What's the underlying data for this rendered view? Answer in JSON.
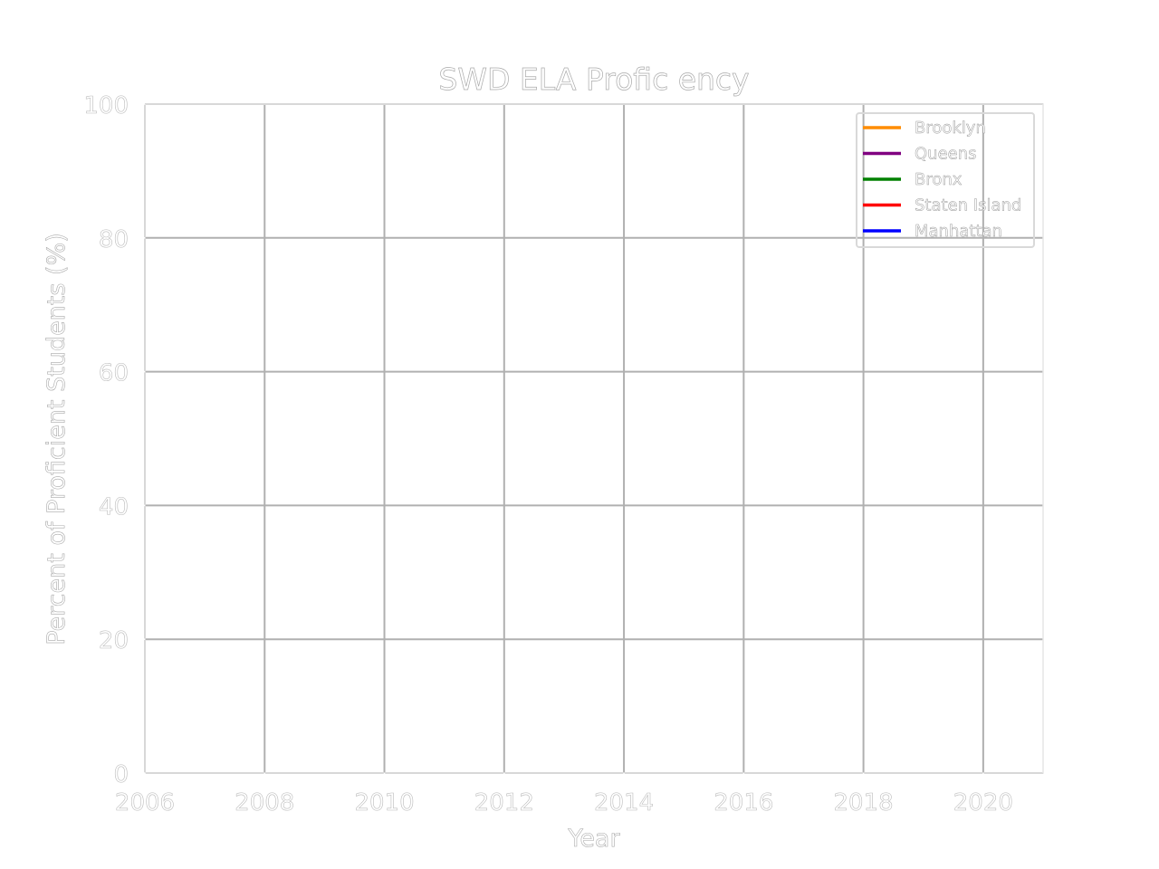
{
  "chart_data": {
    "type": "line",
    "title": "SWD ELA Profic ency",
    "xlabel": "Year",
    "ylabel": "Percent of Proficient Students (%)",
    "xlim": [
      2006,
      2021
    ],
    "ylim": [
      0,
      100
    ],
    "x_ticks": [
      2006,
      2008,
      2010,
      2012,
      2014,
      2016,
      2018,
      2020
    ],
    "y_ticks": [
      0,
      20,
      40,
      60,
      80,
      100
    ],
    "grid": true,
    "legend_position": "top-right",
    "series": [
      {
        "name": "Brooklyn",
        "color": "#ff8c00",
        "x": [],
        "y": []
      },
      {
        "name": "Queens",
        "color": "#800080",
        "x": [],
        "y": []
      },
      {
        "name": "Bronx",
        "color": "#008000",
        "x": [],
        "y": []
      },
      {
        "name": "Staten Island",
        "color": "#ff0000",
        "x": [],
        "y": []
      },
      {
        "name": "Manhattan",
        "color": "#0000ff",
        "x": [],
        "y": []
      }
    ],
    "text_color": "#ffffff",
    "grid_color": "#b0b0b0"
  }
}
